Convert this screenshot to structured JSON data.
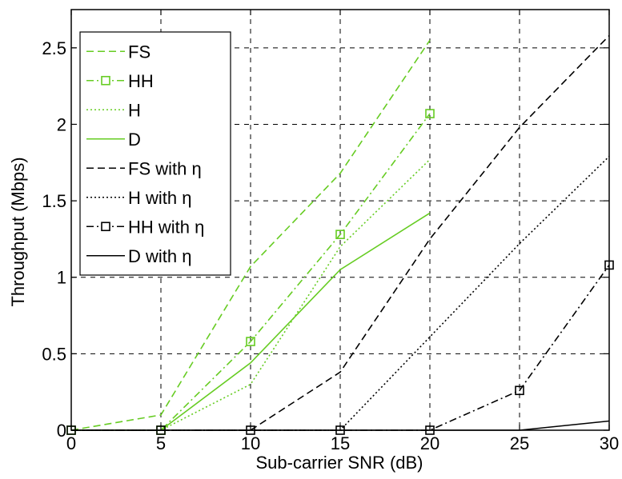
{
  "chart_data": {
    "type": "line",
    "title": "",
    "xlabel": "Sub-carrier SNR (dB)",
    "ylabel": "Throughput (Mbps)",
    "xlim": [
      0,
      30
    ],
    "ylim": [
      0,
      2.75
    ],
    "xticks": [
      0,
      5,
      10,
      15,
      20,
      25,
      30
    ],
    "yticks": [
      0,
      0.5,
      1,
      1.5,
      2,
      2.5
    ],
    "xtick_labels": [
      "0",
      "5",
      "10",
      "15",
      "20",
      "25",
      "30"
    ],
    "ytick_labels": [
      "0",
      "0.5",
      "1",
      "1.5",
      "2",
      "2.5"
    ],
    "grid": true,
    "legend_position": "top-left",
    "colors": {
      "green": "#66cc22",
      "black": "#000000"
    },
    "series": [
      {
        "name": "FS",
        "color": "green",
        "style": "dashed",
        "marker": "none",
        "x": [
          0,
          5,
          10,
          15,
          20
        ],
        "y": [
          0,
          0.1,
          1.07,
          1.68,
          2.55
        ]
      },
      {
        "name": "HH",
        "color": "green",
        "style": "dashdot",
        "marker": "square",
        "x": [
          0,
          5,
          10,
          15,
          20
        ],
        "y": [
          0,
          0,
          0.58,
          1.28,
          2.07
        ]
      },
      {
        "name": "H",
        "color": "green",
        "style": "dotted",
        "marker": "none",
        "x": [
          0,
          5,
          10,
          15,
          20
        ],
        "y": [
          0,
          0,
          0.3,
          1.2,
          1.77
        ]
      },
      {
        "name": "D",
        "color": "green",
        "style": "solid",
        "marker": "none",
        "x": [
          0,
          5,
          10,
          15,
          20
        ],
        "y": [
          0,
          0,
          0.44,
          1.05,
          1.42
        ]
      },
      {
        "name": "FS with η",
        "color": "black",
        "style": "dashed",
        "marker": "none",
        "x": [
          0,
          5,
          10,
          15,
          20,
          25,
          30
        ],
        "y": [
          0,
          0,
          0,
          0.38,
          1.25,
          1.98,
          2.58
        ]
      },
      {
        "name": "H with η",
        "color": "black",
        "style": "dotted",
        "marker": "none",
        "x": [
          0,
          5,
          10,
          15,
          20,
          25,
          30
        ],
        "y": [
          0,
          0,
          0,
          0,
          0.61,
          1.22,
          1.79
        ]
      },
      {
        "name": "HH with η",
        "color": "black",
        "style": "dashdot",
        "marker": "square",
        "x": [
          0,
          5,
          10,
          15,
          20,
          25,
          30
        ],
        "y": [
          0,
          0,
          0,
          0,
          0,
          0.26,
          1.08
        ]
      },
      {
        "name": "D with η",
        "color": "black",
        "style": "solid",
        "marker": "none",
        "x": [
          0,
          5,
          10,
          15,
          20,
          25,
          30
        ],
        "y": [
          0,
          0,
          0,
          0,
          0,
          0,
          0.06
        ]
      }
    ]
  }
}
